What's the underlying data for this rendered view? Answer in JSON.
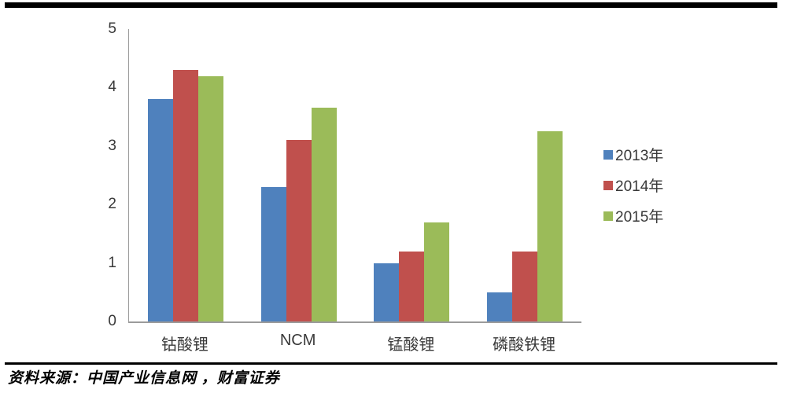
{
  "source": {
    "text": "资料来源：中国产业信息网 ，财富证券"
  },
  "styles": {
    "rule_color": "#000000",
    "axis_color": "#9b9b9b",
    "label_color": "#393939",
    "series_colors": {
      "y2013": "#4F81BD",
      "y2014": "#C0504D",
      "y2015": "#9BBB59"
    }
  },
  "chart_data": {
    "type": "bar",
    "title": "",
    "xlabel": "",
    "ylabel": "",
    "categories": [
      "钴酸锂",
      "NCM",
      "锰酸锂",
      "磷酸铁锂"
    ],
    "series": [
      {
        "name": "2013年",
        "color": "#4F81BD",
        "values": [
          3.8,
          2.3,
          1.0,
          0.5
        ]
      },
      {
        "name": "2014年",
        "color": "#C0504D",
        "values": [
          4.3,
          3.1,
          1.2,
          1.2
        ]
      },
      {
        "name": "2015年",
        "color": "#9BBB59",
        "values": [
          4.2,
          3.65,
          1.7,
          3.25
        ]
      }
    ],
    "ylim": [
      0,
      5
    ],
    "yticks": [
      0,
      1,
      2,
      3,
      4,
      5
    ],
    "grid": false,
    "legend_position": "right"
  }
}
